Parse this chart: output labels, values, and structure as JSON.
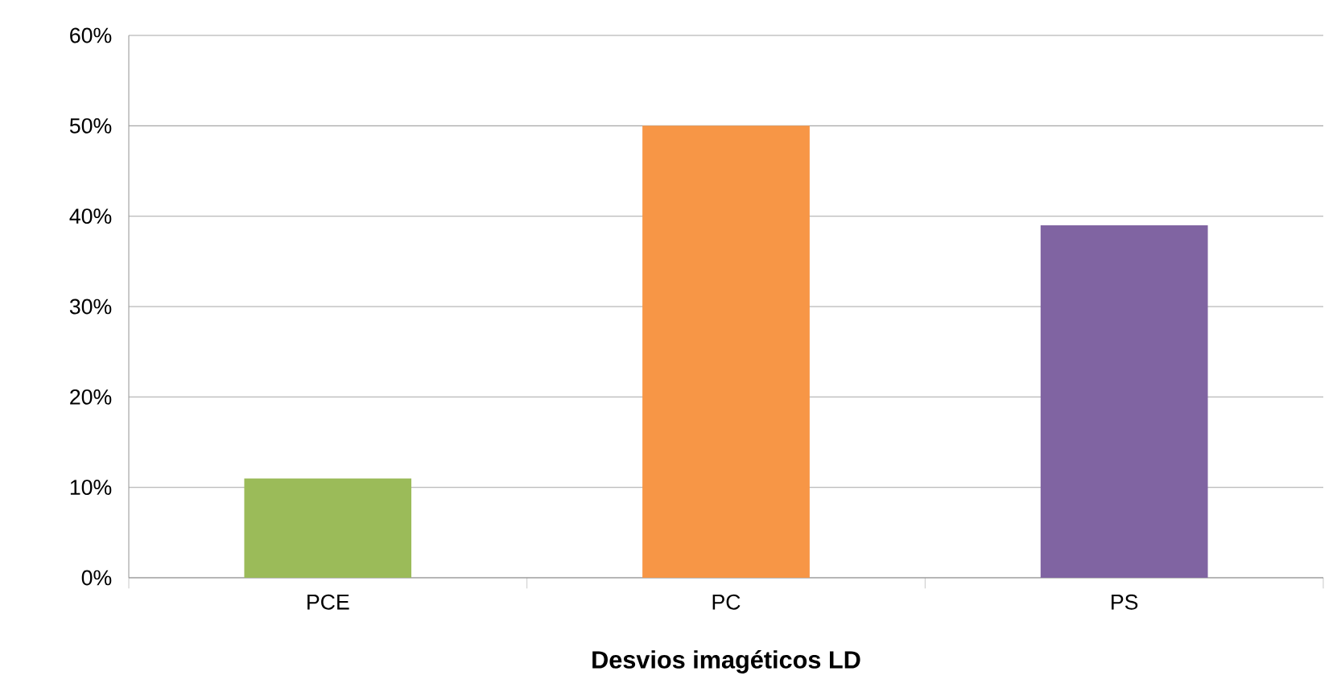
{
  "chart_data": {
    "type": "bar",
    "xlabel": "Desvios imagéticos LD",
    "categories": [
      "PCE",
      "PC",
      "PS"
    ],
    "values": [
      11,
      50,
      39
    ],
    "colors": [
      "#9bbb59",
      "#f79646",
      "#8064a2"
    ],
    "ylim": [
      0,
      60
    ],
    "yticks": [
      {
        "value": 0,
        "label": "0%"
      },
      {
        "value": 10,
        "label": "10%"
      },
      {
        "value": 20,
        "label": "20%"
      },
      {
        "value": 30,
        "label": "30%"
      },
      {
        "value": 40,
        "label": "40%"
      },
      {
        "value": 50,
        "label": "50%"
      },
      {
        "value": 60,
        "label": "60%"
      }
    ],
    "grid": "y"
  }
}
